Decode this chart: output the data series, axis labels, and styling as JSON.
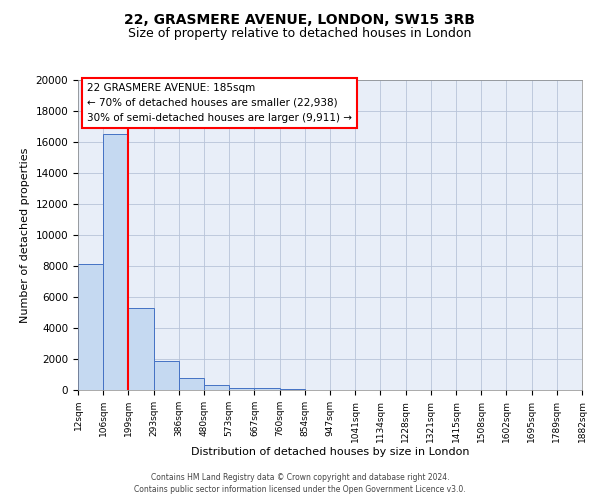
{
  "title": "22, GRASMERE AVENUE, LONDON, SW15 3RB",
  "subtitle": "Size of property relative to detached houses in London",
  "xlabel": "Distribution of detached houses by size in London",
  "ylabel": "Number of detached properties",
  "bar_heights": [
    8100,
    16500,
    5300,
    1850,
    800,
    350,
    150,
    100,
    50,
    20,
    10,
    5,
    5,
    5,
    5,
    5,
    5,
    5,
    5,
    5
  ],
  "tick_labels": [
    "12sqm",
    "106sqm",
    "199sqm",
    "293sqm",
    "386sqm",
    "480sqm",
    "573sqm",
    "667sqm",
    "760sqm",
    "854sqm",
    "947sqm",
    "1041sqm",
    "1134sqm",
    "1228sqm",
    "1321sqm",
    "1415sqm",
    "1508sqm",
    "1602sqm",
    "1695sqm",
    "1789sqm",
    "1882sqm"
  ],
  "bar_color": "#c5d9f1",
  "bar_edge_color": "#4472c4",
  "red_line_index": 2,
  "annotation_line1": "22 GRASMERE AVENUE: 185sqm",
  "annotation_line2": "← 70% of detached houses are smaller (22,938)",
  "annotation_line3": "30% of semi-detached houses are larger (9,911) →",
  "ylim_max": 20000,
  "yticks": [
    0,
    2000,
    4000,
    6000,
    8000,
    10000,
    12000,
    14000,
    16000,
    18000,
    20000
  ],
  "footer1": "Contains HM Land Registry data © Crown copyright and database right 2024.",
  "footer2": "Contains public sector information licensed under the Open Government Licence v3.0.",
  "plot_bg_color": "#e8eef8",
  "title_fontsize": 10,
  "subtitle_fontsize": 9,
  "ylabel_fontsize": 8,
  "xlabel_fontsize": 8,
  "tick_fontsize": 6.5,
  "ytick_fontsize": 7.5,
  "grid_color": "#b8c4d8",
  "annotation_fontsize": 7.5,
  "footer_fontsize": 5.5
}
